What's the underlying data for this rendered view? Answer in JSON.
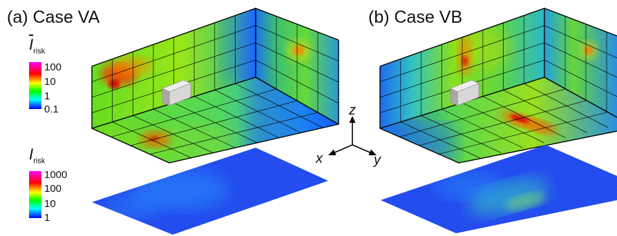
{
  "panels": [
    {
      "title": "(a) Case VA"
    },
    {
      "title": "(b) Case VB"
    }
  ],
  "legend_mean": {
    "symbol": "I",
    "subscript": "risk",
    "overbar": true,
    "ticks": [
      "100",
      "10",
      "1",
      "0.1"
    ]
  },
  "legend_inst": {
    "symbol": "I",
    "subscript": "risk",
    "overbar": false,
    "ticks": [
      "1000",
      "100",
      "10",
      "1"
    ]
  },
  "axes": {
    "z": "z",
    "x": "x",
    "y": "y"
  },
  "colors": {
    "colormap": [
      "#ff00ff",
      "#ff0000",
      "#ffff00",
      "#00ff00",
      "#00ffff",
      "#0000ff"
    ],
    "edge": "#000000",
    "device": "#c8c8c8"
  }
}
